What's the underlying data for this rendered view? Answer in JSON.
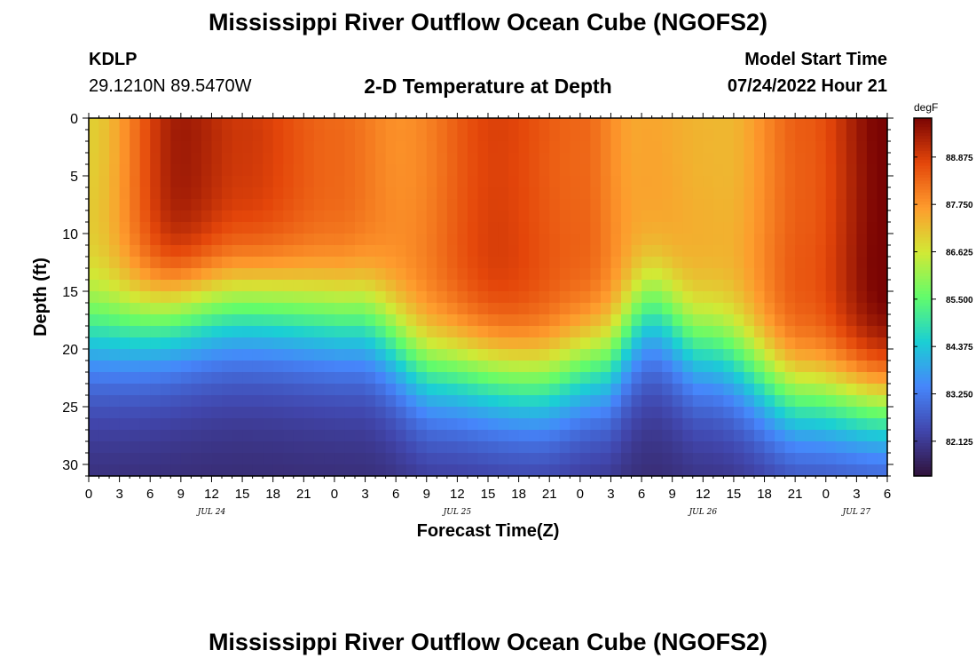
{
  "header": {
    "title": "Mississippi River Outflow Ocean Cube (NGOFS2)",
    "station": "KDLP",
    "coords": "29.1210N  89.5470W",
    "subtitle": "2-D Temperature at Depth",
    "model_start_label": "Model Start Time",
    "model_start_value": "07/24/2022 Hour 21"
  },
  "footer": {
    "title": "Mississippi River Outflow Ocean Cube (NGOFS2)"
  },
  "chart_data": {
    "type": "heatmap",
    "xlabel": "Forecast Time(Z)",
    "ylabel": "Depth (ft)",
    "x_range_hours_from_jul24_00z": [
      0,
      78
    ],
    "x_tick_labels": [
      "0",
      "3",
      "6",
      "9",
      "12",
      "15",
      "18",
      "21",
      "0",
      "3",
      "6",
      "9",
      "12",
      "15",
      "18",
      "21",
      "0",
      "3",
      "6",
      "9",
      "12",
      "15",
      "18",
      "21",
      "0",
      "3",
      "6"
    ],
    "date_labels": [
      {
        "text": "JUL 24",
        "hour": 12
      },
      {
        "text": "JUL 25",
        "hour": 36
      },
      {
        "text": "JUL 26",
        "hour": 60
      },
      {
        "text": "JUL 27",
        "hour": 75
      }
    ],
    "y_range": [
      0,
      31
    ],
    "y_ticks": [
      0,
      5,
      10,
      15,
      20,
      25,
      30
    ],
    "y_inverted": true,
    "colorbar": {
      "unit": "degF",
      "range": [
        81.3,
        89.8
      ],
      "tick_values": [
        88.875,
        87.75,
        86.625,
        85.5,
        84.375,
        83.25,
        82.125
      ],
      "tick_labels": [
        "88.875",
        "87.750",
        "86.625",
        "85.500",
        "84.375",
        "83.250",
        "82.125"
      ],
      "colormap": [
        "#30123b",
        "#4146ac",
        "#4686fb",
        "#1bcfd4",
        "#62fc6b",
        "#d2e935",
        "#fe9b2d",
        "#e4460a",
        "#7a0403"
      ]
    },
    "thermocline_depth_ft": [
      {
        "hour": 0,
        "depth": 17
      },
      {
        "hour": 15,
        "depth": 15
      },
      {
        "hour": 26,
        "depth": 16
      },
      {
        "hour": 34,
        "depth": 20.5
      },
      {
        "hour": 44,
        "depth": 21.5
      },
      {
        "hour": 50,
        "depth": 20
      },
      {
        "hour": 55,
        "depth": 15.5
      },
      {
        "hour": 60,
        "depth": 18.5
      },
      {
        "hour": 70,
        "depth": 23
      },
      {
        "hour": 78,
        "depth": 23.5
      }
    ],
    "surface_temperature_degF": [
      {
        "hour": 0,
        "value": 86.6
      },
      {
        "hour": 9,
        "value": 89.0
      },
      {
        "hour": 15,
        "value": 88.5
      },
      {
        "hour": 24,
        "value": 87.9
      },
      {
        "hour": 30,
        "value": 87.5
      },
      {
        "hour": 40,
        "value": 88.6
      },
      {
        "hour": 48,
        "value": 88.1
      },
      {
        "hour": 54,
        "value": 87.1
      },
      {
        "hour": 62,
        "value": 87.0
      },
      {
        "hour": 70,
        "value": 88.3
      },
      {
        "hour": 78,
        "value": 89.7
      }
    ],
    "bottom_temperature_degF": 81.7
  }
}
